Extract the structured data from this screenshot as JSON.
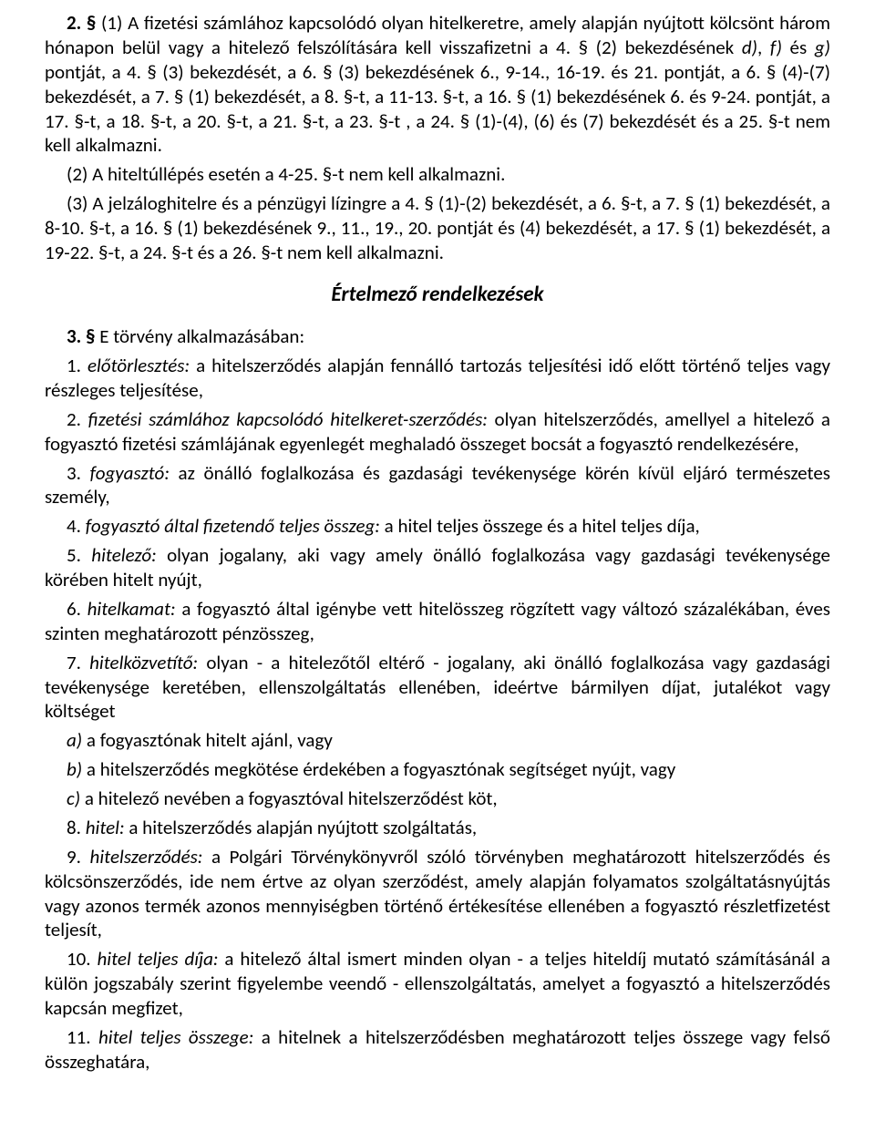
{
  "heading": "Értelmező rendelkezések",
  "top": {
    "p1": [
      {
        "t": "2. §",
        "c": "bold"
      },
      {
        "t": " (1) A fizetési számlához kapcsolódó olyan hitelkeretre, amely alapján nyújtott kölcsönt három hónapon belül vagy a hitelező felszólítására kell visszafizetni a 4. § (2) bekezdésének "
      },
      {
        "t": "d)",
        "c": "italic"
      },
      {
        "t": ", "
      },
      {
        "t": "f)",
        "c": "italic"
      },
      {
        "t": " és "
      },
      {
        "t": "g)",
        "c": "italic"
      },
      {
        "t": " pontját, a 4. § (3) bekezdését, a 6. § (3) bekezdésének 6., 9-14., 16-19. és 21. pontját, a 6. § (4)-(7) bekezdését, a 7. § (1) bekezdését, a 8. §-t, a 11-13. §-t, a 16. § (1) bekezdésének 6. és 9-24. pontját, a 17. §-t, a 18. §-t, a 20. §-t, a 21. §-t, a 23. §-t , a 24. § (1)-(4), (6) és (7) bekezdését és a 25. §-t nem kell alkalmazni."
      }
    ],
    "p2": "(2) A hiteltúllépés esetén a 4-25. §-t nem kell alkalmazni.",
    "p3": "(3) A jelzáloghitelre és a pénzügyi lízingre a 4. § (1)-(2) bekezdését, a 6. §-t, a 7. § (1) bekezdését, a 8-10. §-t, a 16. § (1) bekezdésének 9., 11., 19., 20. pontját és (4) bekezdését, a 17. § (1) bekezdését, a 19-22. §-t, a 24. §-t és a 26. §-t nem kell alkalmazni."
  },
  "section3": {
    "lead": [
      {
        "t": "3. §",
        "c": "bold"
      },
      {
        "t": " E törvény alkalmazásában:"
      }
    ],
    "d1": [
      {
        "t": "1. "
      },
      {
        "t": "előtörlesztés:",
        "c": "def-term"
      },
      {
        "t": " a hitelszerződés alapján fennálló tartozás teljesítési idő előtt történő teljes vagy részleges teljesítése,"
      }
    ],
    "d2": [
      {
        "t": "2. "
      },
      {
        "t": "fizetési számlához kapcsolódó hitelkeret-szerződés:",
        "c": "def-term"
      },
      {
        "t": " olyan hitelszerződés, amellyel a hitelező a fogyasztó fizetési számlájának egyenlegét meghaladó összeget bocsát a fogyasztó rendelkezésére,"
      }
    ],
    "d3": [
      {
        "t": "3. "
      },
      {
        "t": "fogyasztó:",
        "c": "def-term"
      },
      {
        "t": " az önálló foglalkozása és gazdasági tevékenysége körén kívül eljáró természetes személy,"
      }
    ],
    "d4": [
      {
        "t": "4. "
      },
      {
        "t": "fogyasztó által fizetendő teljes összeg:",
        "c": "def-term"
      },
      {
        "t": " a hitel teljes összege és a hitel teljes díja,"
      }
    ],
    "d5": [
      {
        "t": "5. "
      },
      {
        "t": "hitelező:",
        "c": "def-term"
      },
      {
        "t": " olyan jogalany, aki vagy amely önálló foglalkozása vagy gazdasági tevékenysége körében hitelt nyújt,"
      }
    ],
    "d6": [
      {
        "t": "6. "
      },
      {
        "t": "hitelkamat:",
        "c": "def-term"
      },
      {
        "t": " a fogyasztó által igénybe vett hitelösszeg rögzített vagy változó százalékában, éves szinten meghatározott pénzösszeg,"
      }
    ],
    "d7": [
      {
        "t": "7. "
      },
      {
        "t": "hitelközvetítő:",
        "c": "def-term"
      },
      {
        "t": " olyan - a hitelezőtől eltérő - jogalany, aki önálló foglalkozása vagy gazdasági tevékenysége keretében, ellenszolgáltatás ellenében, ideértve bármilyen díjat, jutalékot vagy költséget"
      }
    ],
    "d7a": [
      {
        "t": "a)",
        "c": "italic"
      },
      {
        "t": " a fogyasztónak hitelt ajánl, vagy"
      }
    ],
    "d7b": [
      {
        "t": "b)",
        "c": "italic"
      },
      {
        "t": " a hitelszerződés megkötése érdekében a fogyasztónak segítséget nyújt, vagy"
      }
    ],
    "d7c": [
      {
        "t": "c)",
        "c": "italic"
      },
      {
        "t": " a hitelező nevében a fogyasztóval hitelszerződést köt,"
      }
    ],
    "d8": [
      {
        "t": "8. "
      },
      {
        "t": "hitel:",
        "c": "def-term"
      },
      {
        "t": " a hitelszerződés alapján nyújtott szolgáltatás,"
      }
    ],
    "d9": [
      {
        "t": "9. "
      },
      {
        "t": "hitelszerződés:",
        "c": "def-term"
      },
      {
        "t": " a Polgári Törvénykönyvről szóló törvényben meghatározott hitelszerződés és kölcsönszerződés, ide nem értve az olyan szerződést, amely alapján folyamatos szolgáltatásnyújtás vagy azonos termék azonos mennyiségben történő értékesítése ellenében a fogyasztó részletfizetést teljesít,"
      }
    ],
    "d10": [
      {
        "t": "10. "
      },
      {
        "t": "hitel teljes díja:",
        "c": "def-term"
      },
      {
        "t": " a hitelező által ismert minden olyan - a teljes hiteldíj mutató számításánál a külön jogszabály szerint figyelembe veendő - ellenszolgáltatás, amelyet a fogyasztó a hitelszerződés kapcsán megfizet,"
      }
    ],
    "d11": [
      {
        "t": "11. "
      },
      {
        "t": "hitel teljes összege:",
        "c": "def-term"
      },
      {
        "t": " a hitelnek a hitelszerződésben meghatározott teljes összege vagy felső összeghatára,"
      }
    ]
  }
}
